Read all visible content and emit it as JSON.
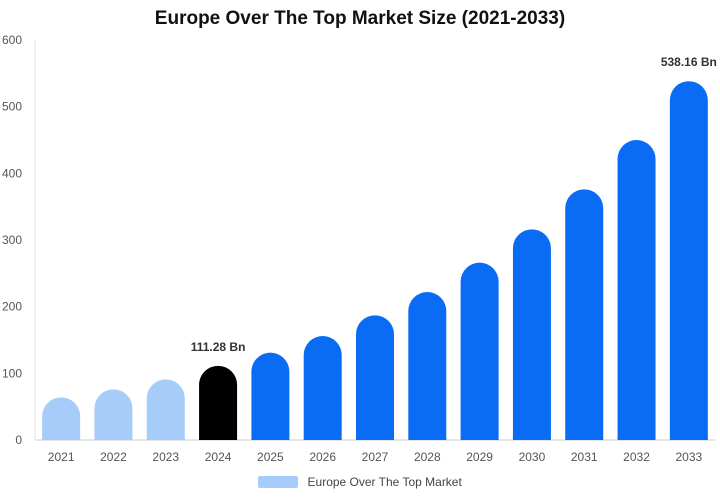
{
  "chart_data": {
    "type": "bar",
    "title": "Europe Over The Top Market Size (2021-2033)",
    "xlabel": "",
    "ylabel": "",
    "categories": [
      "2021",
      "2022",
      "2023",
      "2024",
      "2025",
      "2026",
      "2027",
      "2028",
      "2029",
      "2030",
      "2031",
      "2032",
      "2033"
    ],
    "series": [
      {
        "name": "Europe Over The Top Market",
        "values": [
          64,
          76,
          91,
          111.28,
          131,
          156,
          187,
          222,
          266,
          316,
          376,
          450,
          538.16
        ]
      }
    ],
    "ylim": [
      0,
      600
    ],
    "yticks": [
      0,
      100,
      200,
      300,
      400,
      500,
      600
    ],
    "data_labels": [
      {
        "index": 3,
        "text": "111.28 Bn"
      },
      {
        "index": 12,
        "text": "538.16 Bn"
      }
    ],
    "colors": {
      "historical": "#a6cdf9",
      "current": "#000000",
      "forecast": "#0a6cf5",
      "legend": "#a6cdf9"
    },
    "highlight_index": 3,
    "grid": false,
    "legend_position": "bottom"
  }
}
